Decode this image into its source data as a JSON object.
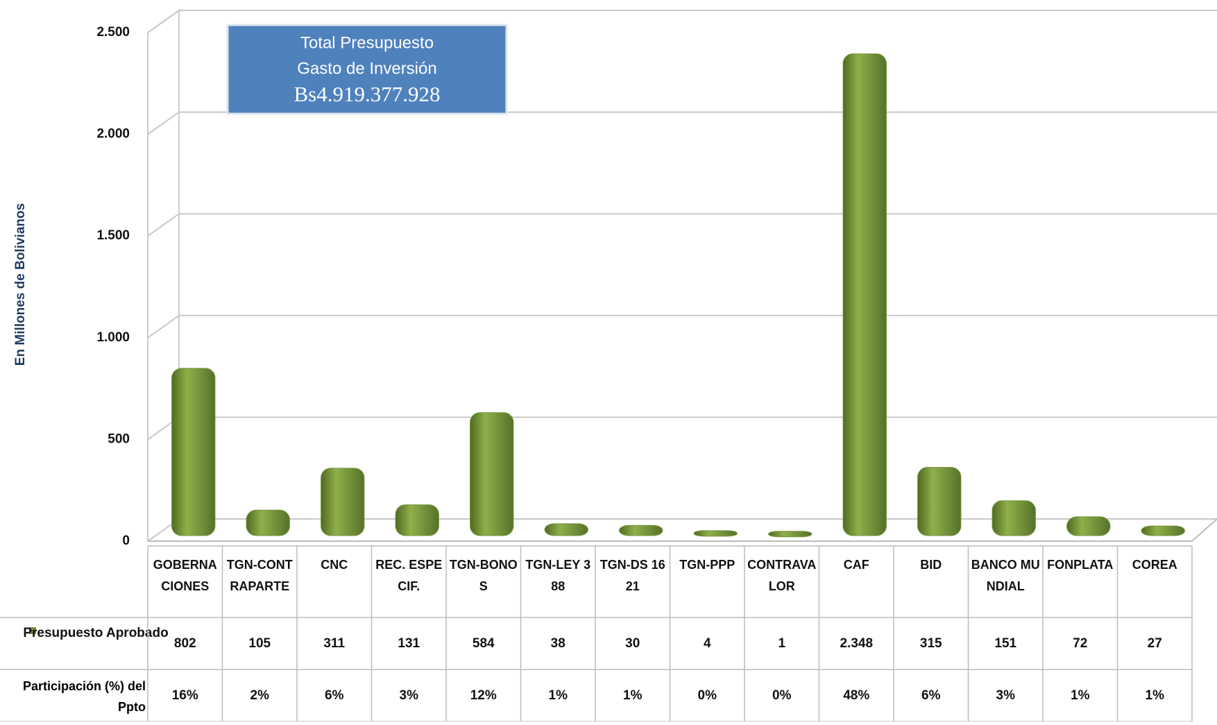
{
  "chart_data": {
    "type": "bar",
    "y_label": "En Millones de Bolivianos",
    "annotation": [
      "Total Presupuesto",
      "Gasto de Inversión",
      "Bs4.919.377.928"
    ],
    "categories": [
      "GOBERNACIONES",
      "TGN-CONTRAPARTE",
      "CNC",
      "REC. ESPECIF.",
      "TGN-BONOS",
      "TGN-LEY 388",
      "TGN-DS 1621",
      "TGN-PPP",
      "CONTRAVALOR",
      "CAF",
      "BID",
      "BANCO MUNDIAL",
      "FONPLATA",
      "COREA"
    ],
    "series": [
      {
        "name": "Presupuesto Aprobado",
        "color": "#77933c",
        "values": [
          802,
          105,
          311,
          131,
          584,
          38,
          30,
          4,
          1,
          2348,
          315,
          151,
          72,
          27
        ],
        "value_labels": [
          "802",
          "105",
          "311",
          "131",
          "584",
          "38",
          "30",
          "4",
          "1",
          "2.348",
          "315",
          "151",
          "72",
          "27"
        ]
      }
    ],
    "share": {
      "name": "Participación (%) del Ppto",
      "values": [
        16,
        2,
        6,
        3,
        12,
        1,
        1,
        0,
        0,
        48,
        6,
        3,
        1,
        1
      ],
      "value_labels": [
        "16%",
        "2%",
        "6%",
        "3%",
        "12%",
        "1%",
        "1%",
        "0%",
        "0%",
        "48%",
        "6%",
        "3%",
        "1%",
        "1%"
      ]
    },
    "ylim": [
      0,
      2500
    ],
    "yticks": [
      0,
      500,
      {
        "value": 1000,
        "label": "1.000"
      },
      {
        "value": 1500,
        "label": "1.500"
      },
      {
        "value": 2000,
        "label": "2.000"
      },
      {
        "value": 2500,
        "label": "2.500"
      }
    ],
    "grid": true
  }
}
